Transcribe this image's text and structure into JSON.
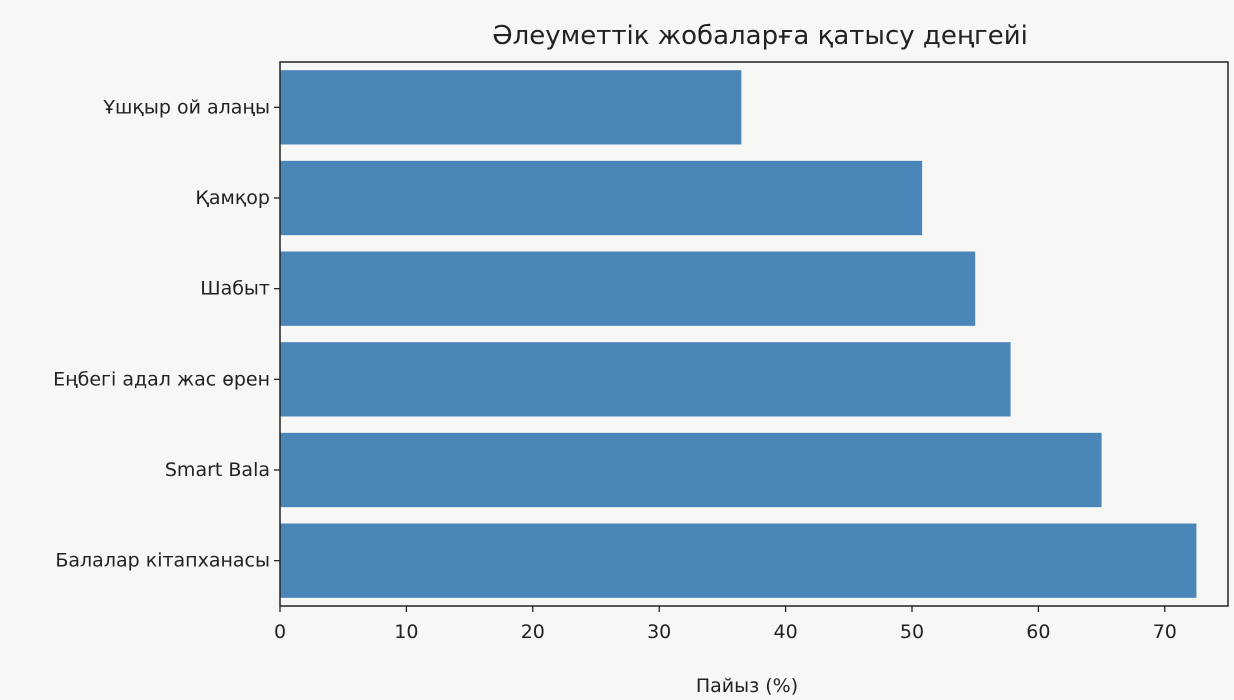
{
  "chart_data": {
    "type": "bar",
    "orientation": "horizontal",
    "title": "Әлеуметтік жобаларға қатысу деңгейі",
    "xlabel": "Пайыз (%)",
    "ylabel": "",
    "xlim": [
      0,
      75
    ],
    "xticks": [
      0,
      10,
      20,
      30,
      40,
      50,
      60,
      70
    ],
    "categories": [
      "Ұшқыр ой алаңы",
      "Қамқор",
      "Шабыт",
      "Еңбегі адал жас өрен",
      "Smart Bala",
      "Балалар кітапханасы"
    ],
    "values": [
      36.5,
      50.8,
      55.0,
      57.8,
      65.0,
      72.5
    ],
    "bar_color": "#4a86b8",
    "grid": false
  }
}
